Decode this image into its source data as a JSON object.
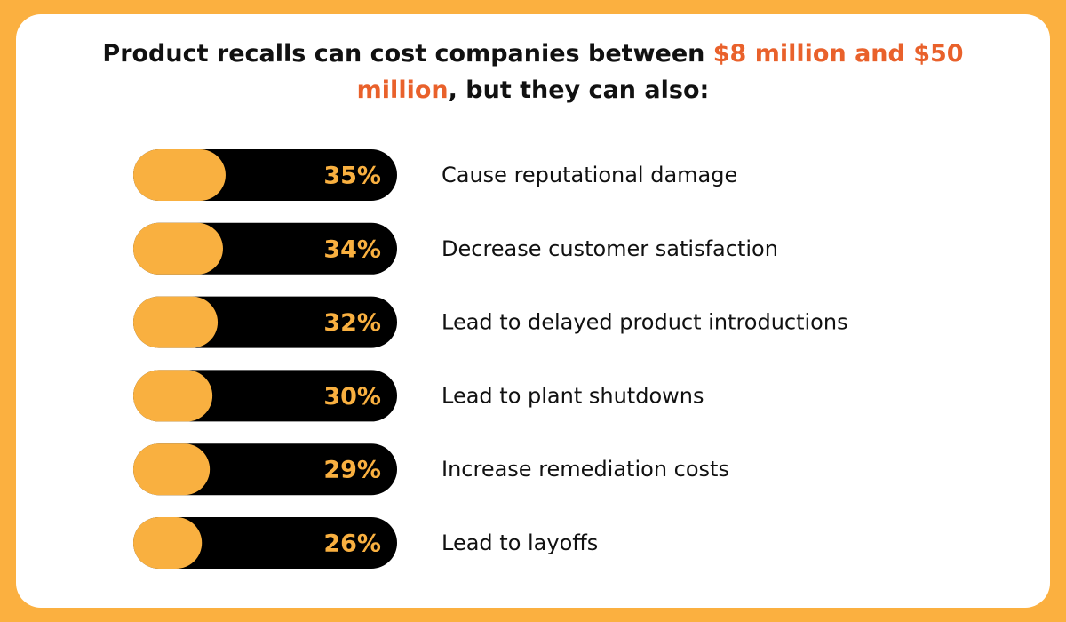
{
  "chart_data": {
    "type": "bar",
    "title": {
      "before": "Product recalls can cost companies between ",
      "highlight": "$8 million and $50 million",
      "after": ", but they can also:"
    },
    "categories": [
      "Cause reputational damage",
      "Decrease customer satisfaction",
      "Lead to delayed product introductions",
      "Lead to plant shutdowns",
      "Increase remediation costs",
      "Lead to layoffs"
    ],
    "values": [
      35,
      34,
      32,
      30,
      29,
      26
    ],
    "value_labels": [
      "35%",
      "34%",
      "32%",
      "30%",
      "29%",
      "26%"
    ],
    "xlim": [
      0,
      100
    ],
    "color": "#f9b040",
    "track_color": "#000000",
    "highlight_color": "#e9612b"
  }
}
